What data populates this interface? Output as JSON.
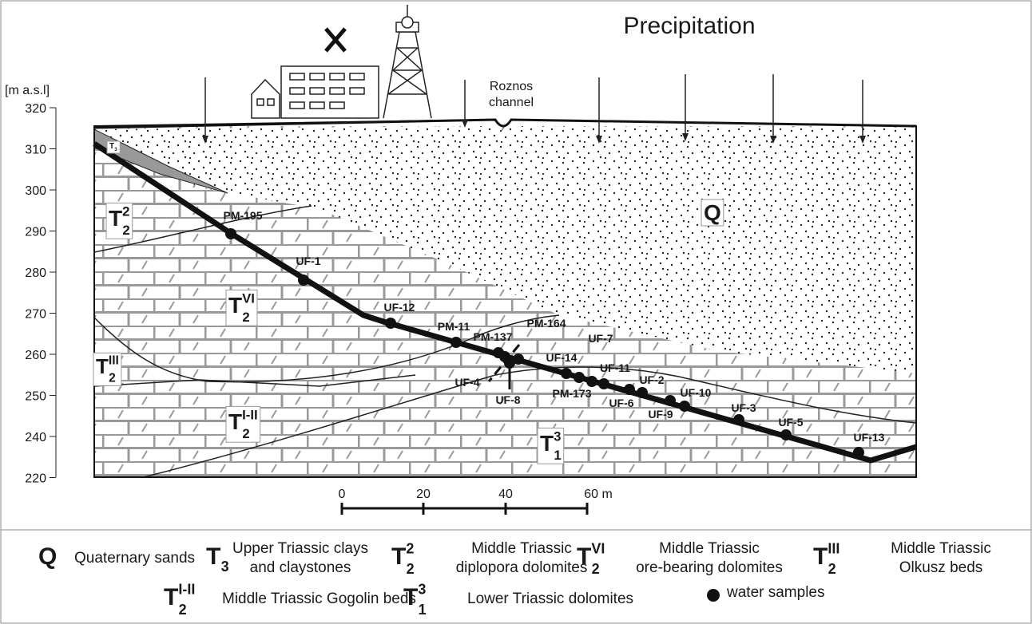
{
  "title": "Precipitation",
  "channel_label": [
    "Roznos",
    "channel"
  ],
  "axis_label": "[m a.s.l]",
  "yticks": [
    320,
    310,
    300,
    290,
    280,
    270,
    260,
    250,
    240,
    220
  ],
  "scale_labels": [
    "0",
    "20",
    "40",
    "60 m"
  ],
  "map_units": [
    {
      "symbol": "Q"
    },
    {
      "symbol": "T",
      "sub": "3"
    },
    {
      "symbol": "T",
      "sub": "2",
      "sup": "2"
    },
    {
      "symbol": "T",
      "sub": "2",
      "sup": "VI"
    },
    {
      "symbol": "T",
      "sub": "2",
      "sup": "III"
    },
    {
      "symbol": "T",
      "sub": "2",
      "sup": "I-II"
    },
    {
      "symbol": "T",
      "sub": "1",
      "sup": "3"
    }
  ],
  "samples": [
    "PM-195",
    "UF-1",
    "UF-12",
    "PM-11",
    "PM-137",
    "PM-164",
    "UF-7",
    "UF-14",
    "UF-4",
    "UF-8",
    "UF-11",
    "UF-2",
    "PM-173",
    "UF-6",
    "UF-9",
    "UF-10",
    "UF-3",
    "UF-5",
    "UF-13"
  ],
  "legend": [
    {
      "symbol": "Q",
      "text": [
        "Quaternary sands"
      ]
    },
    {
      "symbol": "T",
      "sub": "3",
      "text": [
        "Upper Triassic clays",
        "and claystones"
      ]
    },
    {
      "symbol": "T",
      "sub": "2",
      "sup": "2",
      "text": [
        "Middle Triassic",
        "diplopora dolomites"
      ]
    },
    {
      "symbol": "T",
      "sub": "2",
      "sup": "VI",
      "text": [
        "Middle Triassic",
        "ore-bearing dolomites"
      ]
    },
    {
      "symbol": "T",
      "sub": "2",
      "sup": "III",
      "text": [
        "Middle Triassic",
        "Olkusz beds"
      ]
    },
    {
      "symbol": "T",
      "sub": "2",
      "sup": "I-II",
      "text": [
        "Middle Triassic Gogolin beds"
      ]
    },
    {
      "symbol": "T",
      "sub": "1",
      "sup": "3",
      "text": [
        "Lower Triassic dolomites"
      ]
    },
    {
      "text": [
        "water samples"
      ]
    }
  ]
}
